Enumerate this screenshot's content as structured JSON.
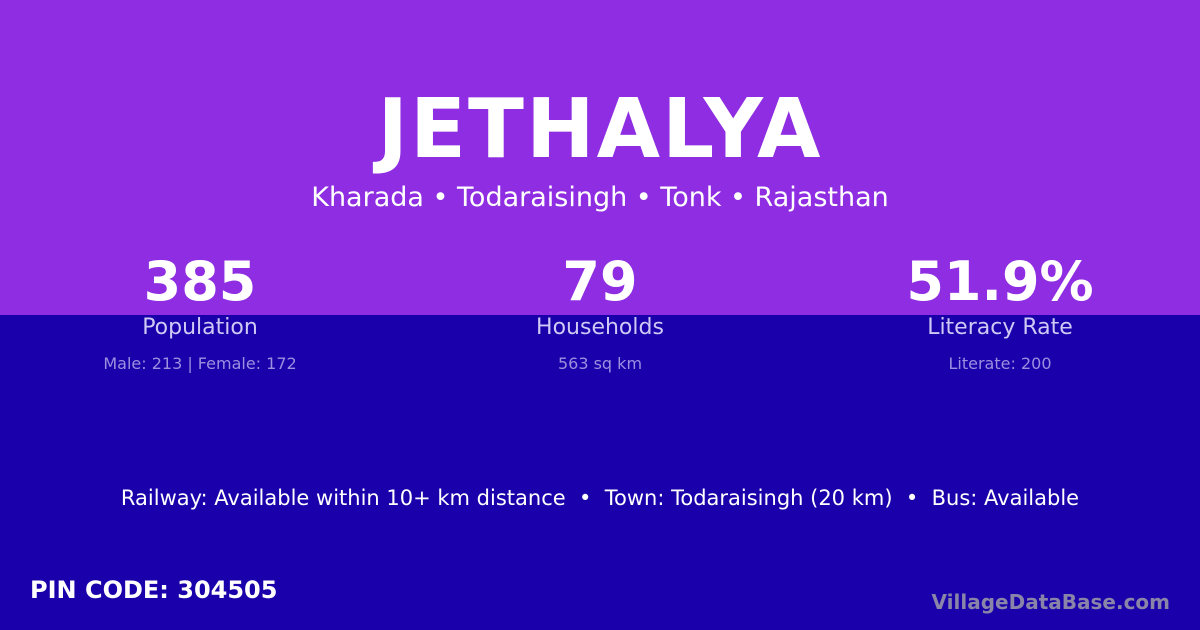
{
  "village": "JETHALYA",
  "location": "Kharada • Todaraisingh • Tonk • Rajasthan",
  "stats": [
    {
      "value": "385",
      "label": "Population",
      "detail": "Male: 213 | Female: 172"
    },
    {
      "value": "79",
      "label": "Households",
      "detail": "563 sq km"
    },
    {
      "value": "51.9%",
      "label": "Literacy Rate",
      "detail": "Literate: 200"
    }
  ],
  "connectivity": "Railway: Available within 10+ km distance  •  Town: Todaraisingh (20 km)  •  Bus: Available",
  "pin": "PIN CODE: 304505",
  "brand": "VillageDataBase.com",
  "colors": {
    "header": "#8e2de2",
    "body": "#1a00aa"
  }
}
